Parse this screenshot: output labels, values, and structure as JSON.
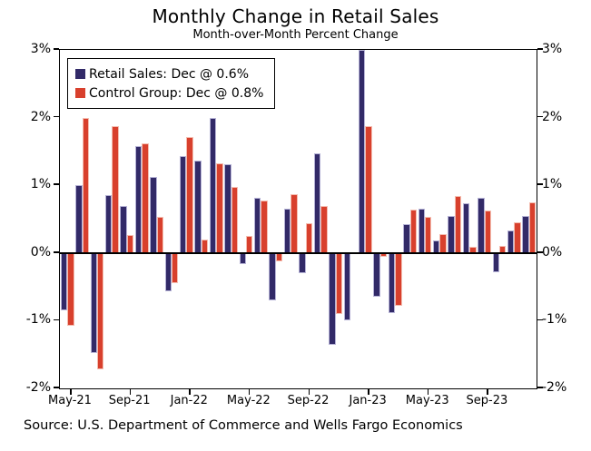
{
  "title": "Monthly Change in Retail Sales",
  "subtitle": "Month-over-Month Percent Change",
  "source": "Source: U.S. Department of Commerce and Wells Fargo Economics",
  "legend": [
    {
      "label": "Retail Sales: Dec @ 0.6%",
      "color": "#322A68"
    },
    {
      "label": "Control Group: Dec @ 0.8%",
      "color": "#D8402D"
    }
  ],
  "colors": {
    "retail_fill": "#322A68",
    "retail_edge": "#B6B3D6",
    "control_fill": "#D8402D",
    "control_edge": "#F4BDB0",
    "axis": "#000000",
    "background": "#FFFFFF"
  },
  "chart_data": {
    "type": "bar",
    "title": "Monthly Change in Retail Sales",
    "subtitle": "Month-over-Month Percent Change",
    "categories": [
      "May-21",
      "Jun-21",
      "Jul-21",
      "Aug-21",
      "Sep-21",
      "Oct-21",
      "Nov-21",
      "Dec-21",
      "Jan-22",
      "Feb-22",
      "Mar-22",
      "Apr-22",
      "May-22",
      "Jun-22",
      "Jul-22",
      "Aug-22",
      "Sep-22",
      "Oct-22",
      "Nov-22",
      "Dec-22",
      "Jan-23",
      "Feb-23",
      "Mar-23",
      "Apr-23",
      "May-23",
      "Jun-23",
      "Jul-23",
      "Aug-23",
      "Sep-23",
      "Oct-23",
      "Nov-23",
      "Dec-23"
    ],
    "series": [
      {
        "name": "Retail Sales",
        "color": "#322A68",
        "edge": "#B6B3D6",
        "values": [
          -0.85,
          1.0,
          -1.48,
          0.85,
          0.7,
          1.58,
          1.12,
          -0.57,
          1.43,
          1.37,
          2.0,
          1.31,
          -0.17,
          0.82,
          -0.7,
          0.65,
          -0.3,
          1.47,
          -1.35,
          -1.0,
          3.0,
          -0.65,
          -0.89,
          0.42,
          0.65,
          0.19,
          0.55,
          0.73,
          0.82,
          -0.29,
          0.33,
          0.55
        ]
      },
      {
        "name": "Control Group",
        "color": "#D8402D",
        "edge": "#F4BDB0",
        "values": [
          -1.08,
          2.0,
          -1.72,
          1.88,
          0.27,
          1.62,
          0.54,
          -0.45,
          1.71,
          0.2,
          1.33,
          0.98,
          0.25,
          0.77,
          -0.13,
          0.87,
          0.44,
          0.7,
          -0.9,
          0.0,
          1.88,
          -0.06,
          -0.78,
          0.64,
          0.54,
          0.28,
          0.84,
          0.09,
          0.63,
          0.1,
          0.45,
          0.75
        ]
      }
    ],
    "ylim": [
      -2,
      3
    ],
    "y_ticks": [
      3,
      2,
      1,
      0,
      -1,
      -2
    ],
    "y_tick_labels": [
      "3%",
      "2%",
      "1%",
      "0%",
      "-1%",
      "-2%"
    ],
    "x_tick_labels": [
      "May-21",
      "Sep-21",
      "Jan-22",
      "May-22",
      "Sep-22",
      "Jan-23",
      "May-23",
      "Sep-23"
    ],
    "x_tick_every": 4,
    "grid": false,
    "legend_position": "top-left",
    "y_axis_both_sides": true
  }
}
